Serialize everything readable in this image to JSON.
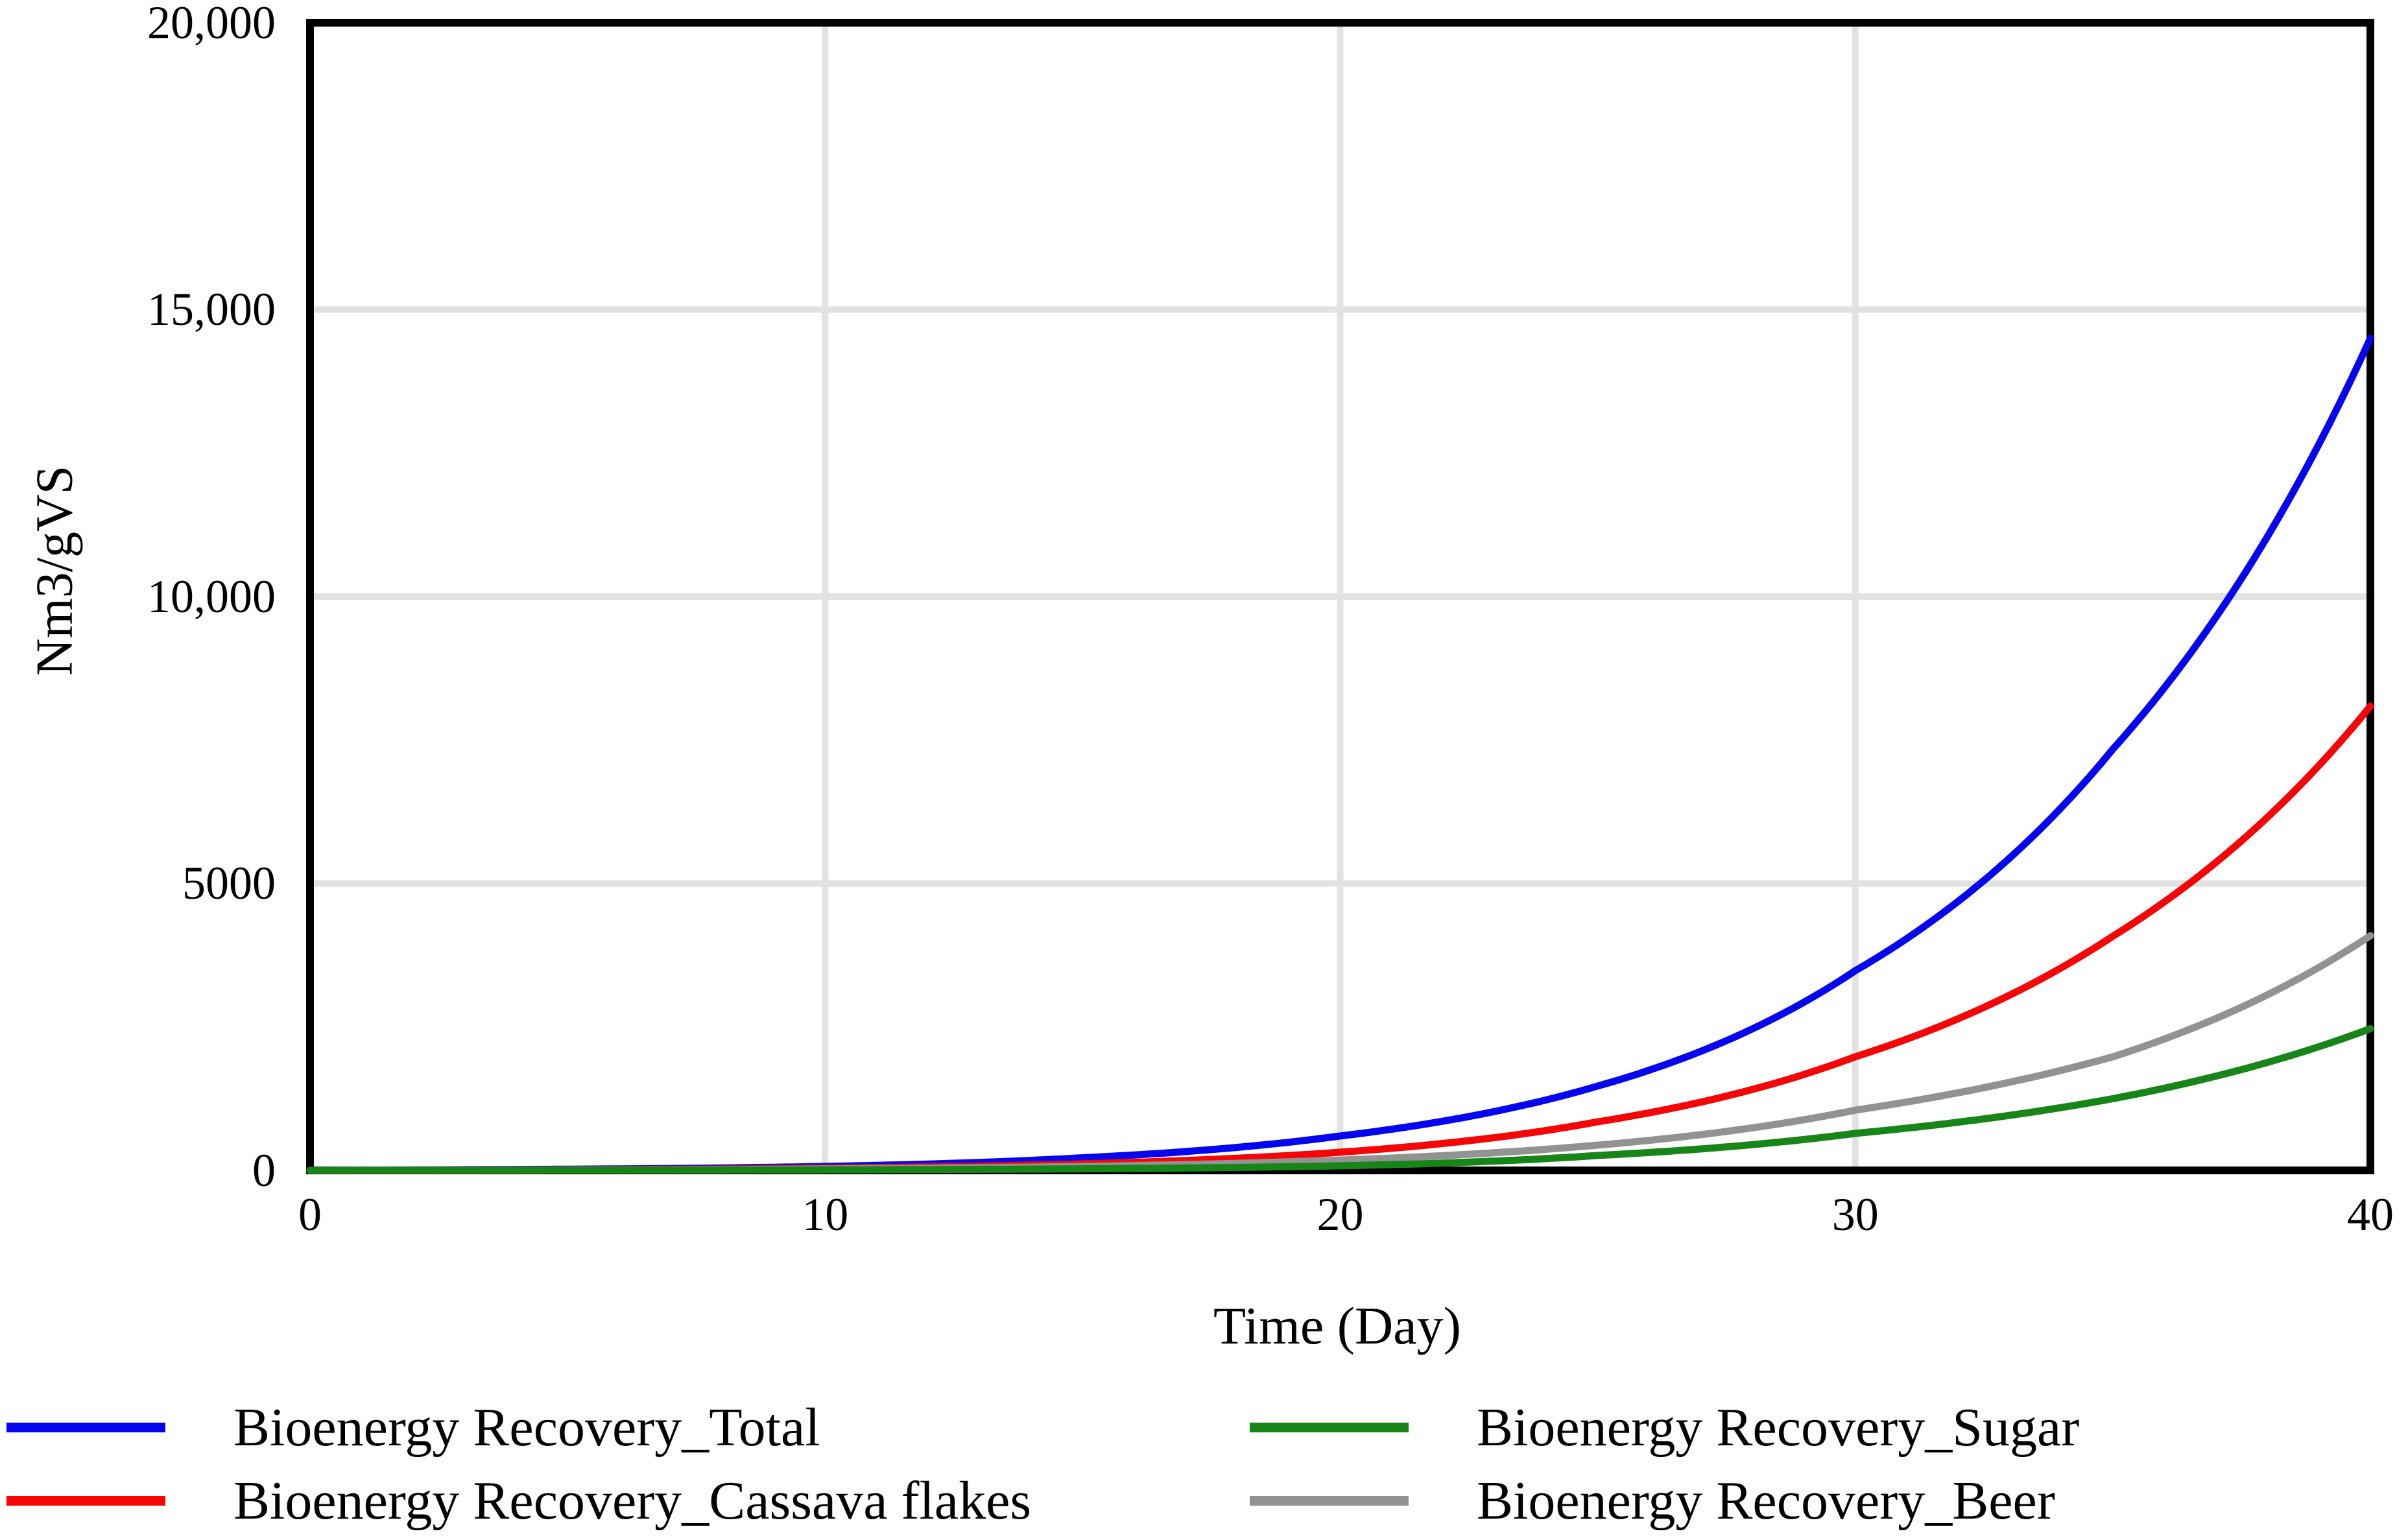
{
  "figure": {
    "y_axis_title": "Nm3/gVS",
    "x_axis_title": "Time (Day)"
  },
  "chart_data": {
    "type": "line",
    "title": "",
    "xlabel": "Time (Day)",
    "ylabel": "Nm3/gVS",
    "xlim": [
      0,
      40
    ],
    "ylim": [
      0,
      20000
    ],
    "grid": true,
    "legend_position": "bottom",
    "axis_color": "#000000",
    "grid_color": "#e2e2e2",
    "x_ticks": [
      {
        "v": 0,
        "label": "0"
      },
      {
        "v": 10,
        "label": "10"
      },
      {
        "v": 20,
        "label": "20"
      },
      {
        "v": 30,
        "label": "30"
      },
      {
        "v": 40,
        "label": "40"
      }
    ],
    "y_ticks": [
      {
        "v": 0,
        "label": "0"
      },
      {
        "v": 5000,
        "label": "5000"
      },
      {
        "v": 10000,
        "label": "10,000"
      },
      {
        "v": 15000,
        "label": "15,000"
      },
      {
        "v": 20000,
        "label": "20,000"
      }
    ],
    "x": [
      0,
      5,
      10,
      15,
      20,
      25,
      30,
      35,
      40
    ],
    "series": [
      {
        "name": "Bioenergy Recovery_Total",
        "color": "#0505f0",
        "values": [
          0,
          20,
          70,
          220,
          600,
          1470,
          3480,
          7340,
          14500
        ]
      },
      {
        "name": "Bioenergy Recovery_Cassava flakes",
        "color": "#f50505",
        "values": [
          0,
          10,
          40,
          115,
          317,
          847,
          1980,
          4080,
          8090
        ]
      },
      {
        "name": "Bioenergy Recovery_Sugar",
        "color": "#178517",
        "values": [
          0,
          3,
          10,
          27,
          80,
          260,
          645,
          1250,
          2470
        ]
      },
      {
        "name": "Bioenergy Recovery_Beer",
        "color": "#929292",
        "values": [
          0,
          6,
          25,
          70,
          180,
          440,
          1050,
          1980,
          4090
        ]
      }
    ],
    "legend": {
      "columns": [
        [
          0,
          1
        ],
        [
          2,
          3
        ]
      ]
    }
  }
}
